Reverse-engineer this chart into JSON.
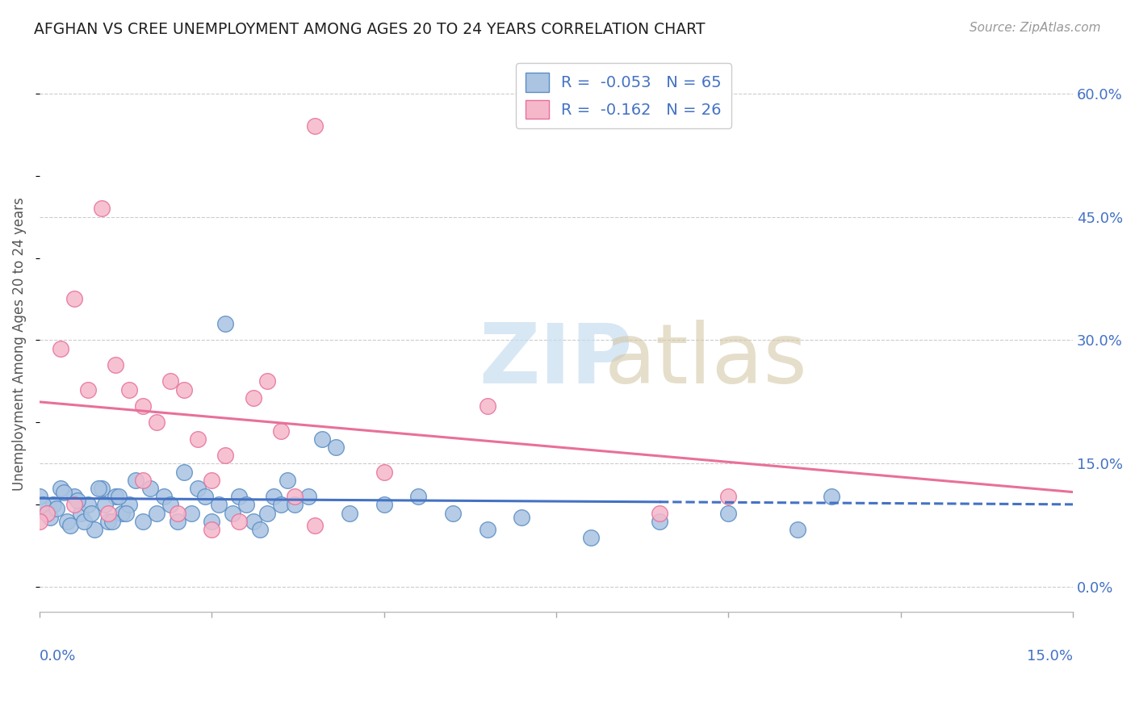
{
  "title": "AFGHAN VS CREE UNEMPLOYMENT AMONG AGES 20 TO 24 YEARS CORRELATION CHART",
  "source": "Source: ZipAtlas.com",
  "ylabel": "Unemployment Among Ages 20 to 24 years",
  "xlim": [
    0.0,
    15.0
  ],
  "ylim": [
    -3.0,
    62.0
  ],
  "xticks": [
    0.0,
    2.5,
    5.0,
    7.5,
    10.0,
    12.5,
    15.0
  ],
  "yticks_right": [
    0.0,
    15.0,
    30.0,
    45.0,
    60.0
  ],
  "ytick_labels_right": [
    "0.0%",
    "15.0%",
    "30.0%",
    "45.0%",
    "60.0%"
  ],
  "afghan_color": "#aac4e2",
  "afghan_edge_color": "#5b8ec4",
  "cree_color": "#f5b8cb",
  "cree_edge_color": "#e8709a",
  "afghan_line_color": "#4472c4",
  "cree_line_color": "#e8709a",
  "afghan_R": -0.053,
  "afghan_N": 65,
  "cree_R": -0.162,
  "cree_N": 26,
  "grid_color": "#cccccc",
  "background_color": "#ffffff",
  "title_color": "#333333",
  "legend_label_color": "#4472c4",
  "solid_end_afghan": 9.0,
  "dashed_start_afghan": 9.0,
  "afghan_x": [
    0.0,
    0.1,
    0.2,
    0.3,
    0.4,
    0.5,
    0.6,
    0.7,
    0.8,
    0.9,
    1.0,
    1.1,
    1.2,
    1.3,
    1.4,
    1.5,
    1.6,
    1.7,
    1.8,
    1.9,
    2.0,
    2.1,
    2.2,
    2.3,
    2.4,
    2.5,
    2.6,
    2.7,
    2.8,
    2.9,
    3.0,
    3.1,
    3.2,
    3.3,
    3.4,
    3.5,
    3.6,
    3.7,
    3.9,
    4.1,
    4.3,
    4.5,
    5.0,
    5.5,
    6.0,
    6.5,
    7.0,
    8.0,
    9.0,
    10.0,
    11.0,
    11.5,
    0.05,
    0.15,
    0.25,
    0.35,
    0.45,
    0.55,
    0.65,
    0.75,
    0.85,
    0.95,
    1.05,
    1.15,
    1.25
  ],
  "afghan_y": [
    11.0,
    9.0,
    10.0,
    12.0,
    8.0,
    11.0,
    9.0,
    10.0,
    7.0,
    12.0,
    8.0,
    11.0,
    9.0,
    10.0,
    13.0,
    8.0,
    12.0,
    9.0,
    11.0,
    10.0,
    8.0,
    14.0,
    9.0,
    12.0,
    11.0,
    8.0,
    10.0,
    32.0,
    9.0,
    11.0,
    10.0,
    8.0,
    7.0,
    9.0,
    11.0,
    10.0,
    13.0,
    10.0,
    11.0,
    18.0,
    17.0,
    9.0,
    10.0,
    11.0,
    9.0,
    7.0,
    8.5,
    6.0,
    8.0,
    9.0,
    7.0,
    11.0,
    10.0,
    8.5,
    9.5,
    11.5,
    7.5,
    10.5,
    8.0,
    9.0,
    12.0,
    10.0,
    8.0,
    11.0,
    9.0
  ],
  "cree_x": [
    0.1,
    0.3,
    0.5,
    0.7,
    0.9,
    1.1,
    1.3,
    1.5,
    1.7,
    1.9,
    2.1,
    2.3,
    2.5,
    2.7,
    2.9,
    3.1,
    3.3,
    3.5,
    3.7,
    4.0,
    5.0,
    6.5,
    9.0,
    10.0
  ],
  "cree_y": [
    9.0,
    29.0,
    35.0,
    24.0,
    46.0,
    27.0,
    24.0,
    22.0,
    20.0,
    25.0,
    24.0,
    18.0,
    13.0,
    16.0,
    8.0,
    23.0,
    25.0,
    19.0,
    11.0,
    56.0,
    14.0,
    22.0,
    9.0,
    11.0
  ],
  "cree_x2": [
    0.0,
    0.5,
    1.0,
    1.5,
    2.0,
    2.5,
    4.0
  ],
  "cree_y2": [
    8.0,
    10.0,
    9.0,
    13.0,
    9.0,
    7.0,
    7.5
  ]
}
